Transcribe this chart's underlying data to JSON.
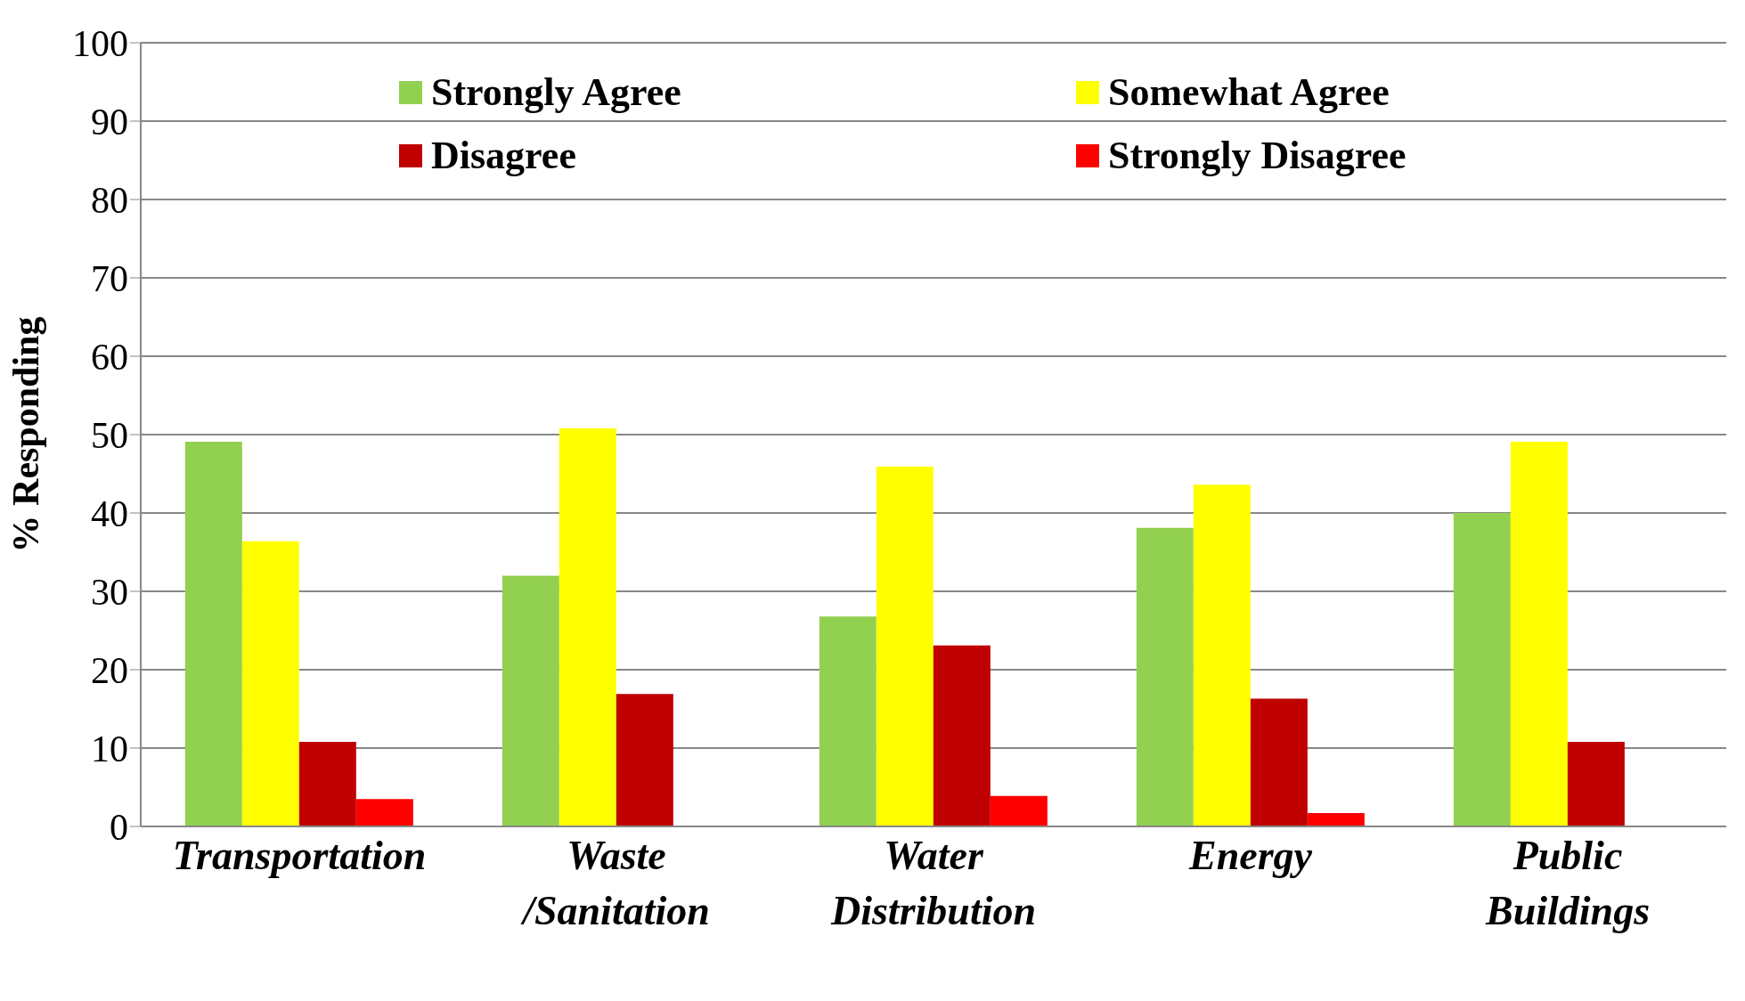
{
  "chart_data": {
    "type": "bar",
    "ylabel": "% Responding",
    "categories": [
      "Transportation",
      "Waste /Sanitation",
      "Water Distribution",
      "Energy",
      "Public Buildings"
    ],
    "series": [
      {
        "name": "Strongly Agree",
        "color": "#92d050",
        "values": [
          49.1,
          32,
          26.8,
          38.1,
          40
        ]
      },
      {
        "name": "Somewhat Agree",
        "color": "#ffff00",
        "values": [
          36.4,
          50.8,
          45.9,
          43.6,
          49.1
        ]
      },
      {
        "name": "Disagree",
        "color": "#c00000",
        "values": [
          10.8,
          16.9,
          23.1,
          16.3,
          10.8
        ]
      },
      {
        "name": "Strongly Disagree",
        "color": "#ff0000",
        "values": [
          3.5,
          0,
          3.9,
          1.7,
          0
        ]
      }
    ],
    "ylim": [
      0,
      100
    ],
    "yticks": [
      0,
      10,
      20,
      30,
      40,
      50,
      60,
      70,
      80,
      90,
      100
    ],
    "grid": "y",
    "legend": "top"
  }
}
